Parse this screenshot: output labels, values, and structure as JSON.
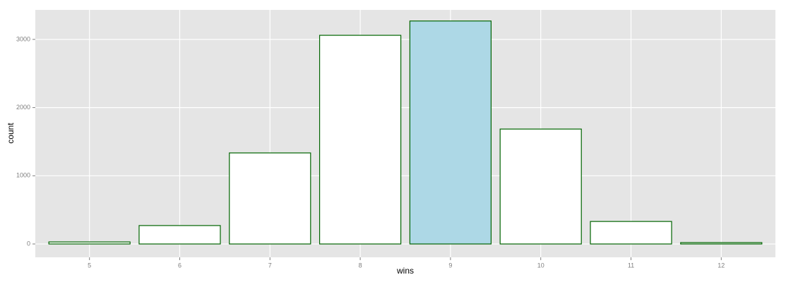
{
  "chart_data": {
    "type": "bar",
    "x_label": "wins",
    "y_label": "count",
    "categories": [
      "5",
      "6",
      "7",
      "8",
      "9",
      "10",
      "11",
      "12"
    ],
    "values": [
      30,
      270,
      1335,
      3060,
      3270,
      1685,
      330,
      20
    ],
    "colors": [
      "#ffffff",
      "#ffffff",
      "#ffffff",
      "#ffffff",
      "#add8e6",
      "#ffffff",
      "#ffffff",
      "#ffffff"
    ],
    "edge_color": "#006400",
    "ylim": [
      -196,
      3433
    ],
    "yticks": [
      0,
      1000,
      2000,
      3000
    ],
    "grid": true
  }
}
